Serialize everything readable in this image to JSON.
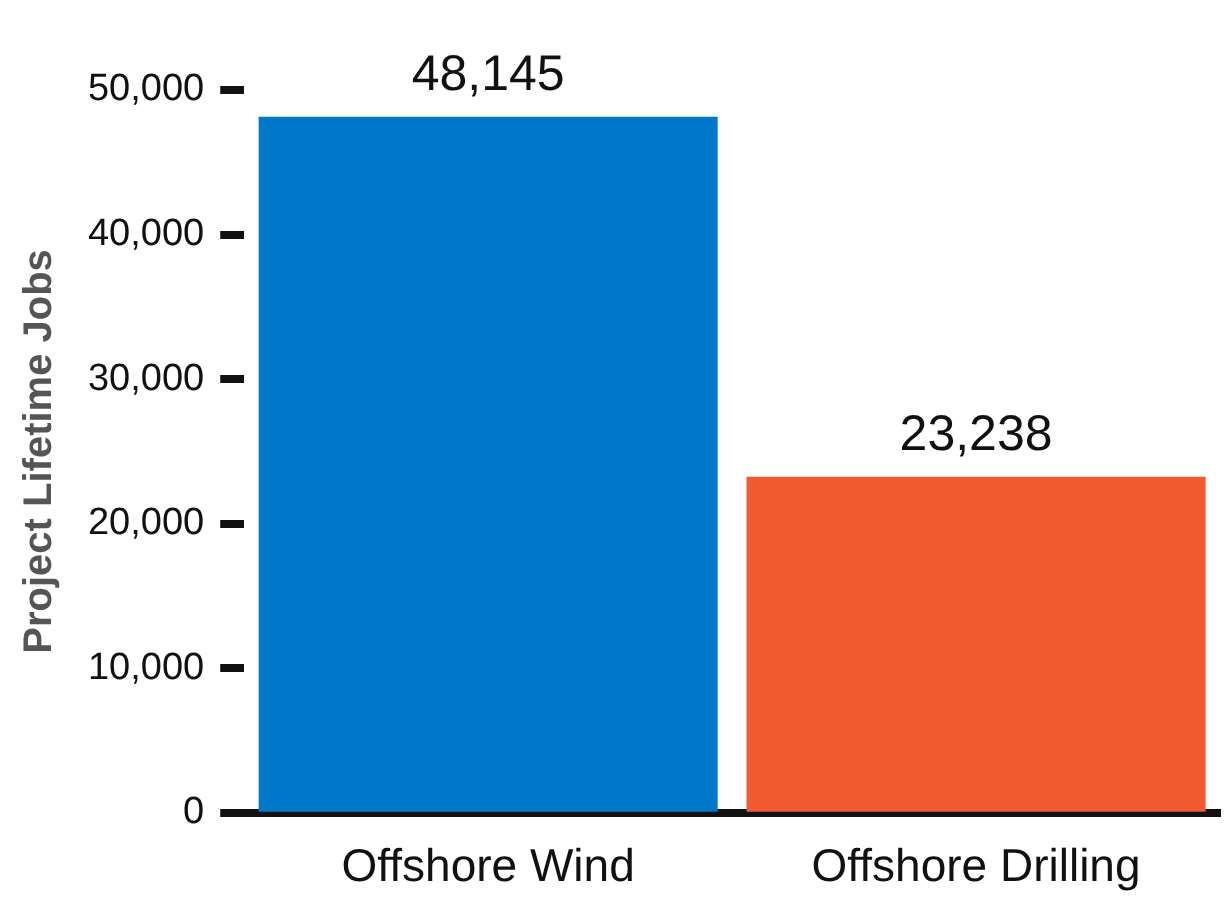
{
  "chart_data": {
    "type": "bar",
    "ylabel": "Project Lifetime Jobs",
    "categories": [
      "Offshore Wind",
      "Offshore Drilling"
    ],
    "values": [
      48145,
      23238
    ],
    "colors": [
      "#0077c8",
      "#f05a30"
    ],
    "ylim": [
      0,
      50000
    ],
    "yticks": [
      {
        "value": 0,
        "label": "0"
      },
      {
        "value": 10000,
        "label": "10,000"
      },
      {
        "value": 20000,
        "label": "20,000"
      },
      {
        "value": 30000,
        "label": "30,000"
      },
      {
        "value": 40000,
        "label": "40,000"
      },
      {
        "value": 50000,
        "label": "50,000"
      }
    ],
    "value_labels": [
      "48,145",
      "23,238"
    ],
    "grid": false,
    "legend": false
  }
}
